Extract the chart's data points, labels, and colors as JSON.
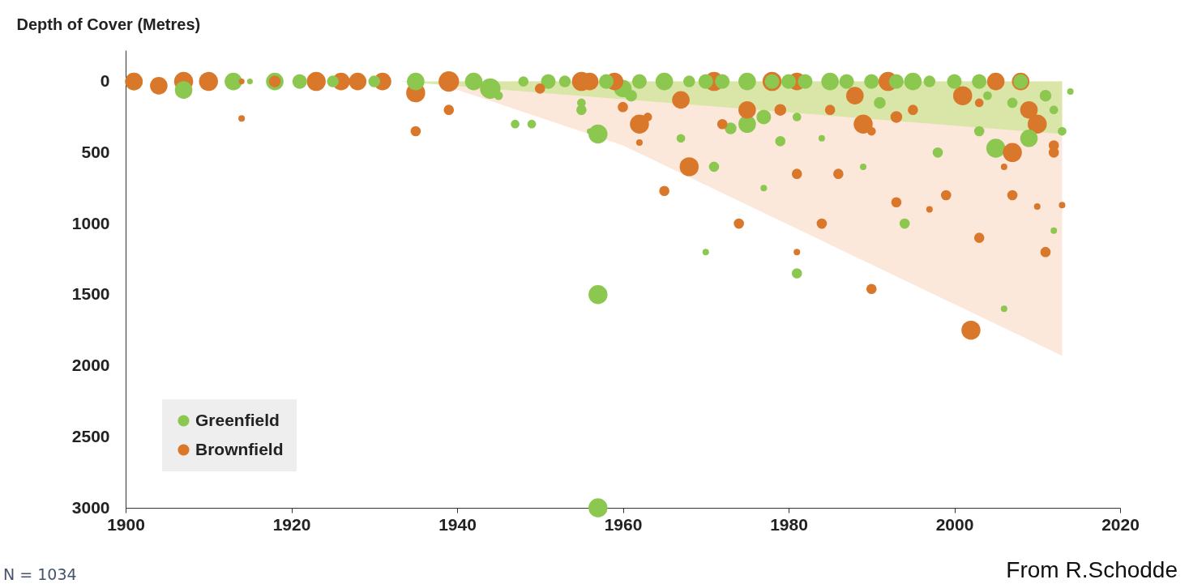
{
  "chart_data": {
    "type": "bubble",
    "ylabel": "Depth of Cover (Metres)",
    "xlim": [
      1900,
      2020
    ],
    "xticks": [
      1900,
      1920,
      1940,
      1960,
      1980,
      2000,
      2020
    ],
    "ylim": [
      3000,
      -220
    ],
    "yticks": [
      0,
      500,
      1000,
      1500,
      2000,
      2500,
      3000
    ],
    "legend": "bottom left",
    "grid": false,
    "annotations": [
      "N = 1034",
      "From R.Schodde"
    ],
    "series": [
      {
        "type": "area",
        "color": "#fbe1d2",
        "x": [
          1937,
          1960,
          2013
        ],
        "values": [
          0,
          450,
          1930
        ]
      },
      {
        "type": "area",
        "color": "#cfe69a",
        "x": [
          1933,
          2013
        ],
        "values": [
          0,
          370
        ]
      },
      {
        "name": "Greenfield",
        "color": "#8cc850",
        "x": [
          1901,
          1907,
          1913,
          1915,
          1918,
          1921,
          1925,
          1930,
          1935,
          1942,
          1944,
          1945,
          1947,
          1948,
          1949,
          1951,
          1953,
          1955,
          1955,
          1956,
          1957,
          1957,
          1957,
          1958,
          1960,
          1961,
          1962,
          1965,
          1967,
          1968,
          1970,
          1970,
          1971,
          1972,
          1973,
          1975,
          1975,
          1977,
          1977,
          1978,
          1979,
          1980,
          1981,
          1981,
          1982,
          1984,
          1985,
          1987,
          1989,
          1990,
          1991,
          1993,
          1994,
          1995,
          1997,
          1998,
          2000,
          2003,
          2003,
          2004,
          2005,
          2006,
          2007,
          2008,
          2009,
          2011,
          2012,
          2012,
          2013,
          2014
        ],
        "values": [
          0,
          60,
          0,
          0,
          0,
          0,
          0,
          0,
          0,
          0,
          50,
          100,
          300,
          0,
          300,
          0,
          0,
          200,
          150,
          350,
          370,
          1500,
          3000,
          0,
          50,
          100,
          0,
          0,
          400,
          0,
          1200,
          0,
          600,
          0,
          330,
          0,
          300,
          750,
          250,
          0,
          420,
          0,
          1350,
          250,
          0,
          400,
          0,
          0,
          600,
          0,
          150,
          0,
          1000,
          0,
          0,
          500,
          0,
          350,
          0,
          100,
          470,
          1600,
          150,
          0,
          400,
          100,
          200,
          1050,
          350,
          70
        ],
        "sizes": [
          0.73,
          0.73,
          0.73,
          0.08,
          0.73,
          0.51,
          0.33,
          0.33,
          0.73,
          0.73,
          1,
          0.18,
          0.18,
          0.25,
          0.18,
          0.51,
          0.33,
          0.25,
          0.18,
          0.08,
          0.86,
          0.86,
          0.86,
          0.51,
          0.73,
          0.33,
          0.51,
          0.73,
          0.18,
          0.33,
          0.1,
          0.51,
          0.25,
          0.51,
          0.33,
          0.73,
          0.73,
          0.1,
          0.51,
          0.51,
          0.25,
          0.51,
          0.25,
          0.18,
          0.51,
          0.1,
          0.73,
          0.51,
          0.1,
          0.51,
          0.33,
          0.51,
          0.25,
          0.73,
          0.33,
          0.25,
          0.51,
          0.25,
          0.51,
          0.18,
          0.86,
          0.1,
          0.25,
          0.51,
          0.73,
          0.33,
          0.18,
          0.1,
          0.18,
          0.1
        ]
      },
      {
        "name": "Brownfield",
        "color": "#d9782b",
        "x": [
          1901,
          1904,
          1907,
          1910,
          1914,
          1914,
          1918,
          1923,
          1926,
          1928,
          1931,
          1935,
          1935,
          1939,
          1939,
          1950,
          1955,
          1956,
          1959,
          1960,
          1962,
          1962,
          1963,
          1965,
          1967,
          1968,
          1971,
          1972,
          1974,
          1975,
          1978,
          1979,
          1981,
          1981,
          1981,
          1984,
          1985,
          1986,
          1988,
          1989,
          1990,
          1990,
          1992,
          1993,
          1993,
          1995,
          1997,
          1999,
          2001,
          2002,
          2003,
          2003,
          2005,
          2006,
          2007,
          2007,
          2008,
          2009,
          2010,
          2010,
          2011,
          2012,
          2012,
          2013
        ],
        "values": [
          0,
          30,
          0,
          0,
          260,
          0,
          0,
          0,
          0,
          0,
          0,
          80,
          350,
          0,
          200,
          50,
          0,
          0,
          0,
          180,
          300,
          430,
          250,
          770,
          130,
          600,
          0,
          300,
          1000,
          200,
          0,
          200,
          650,
          1200,
          0,
          1000,
          200,
          650,
          100,
          300,
          350,
          1460,
          0,
          850,
          250,
          200,
          900,
          800,
          100,
          1750,
          1100,
          150,
          0,
          600,
          500,
          800,
          0,
          200,
          880,
          300,
          1200,
          450,
          500,
          870
        ],
        "sizes": [
          0.73,
          0.73,
          0.86,
          0.86,
          0.1,
          0.08,
          0.33,
          0.86,
          0.73,
          0.73,
          0.73,
          0.86,
          0.25,
          1,
          0.25,
          0.25,
          0.86,
          0.73,
          0.73,
          0.25,
          0.86,
          0.1,
          0.18,
          0.25,
          0.73,
          0.86,
          0.86,
          0.25,
          0.25,
          0.73,
          0.86,
          0.33,
          0.25,
          0.1,
          0.73,
          0.25,
          0.25,
          0.25,
          0.73,
          0.86,
          0.18,
          0.25,
          0.86,
          0.25,
          0.33,
          0.25,
          0.1,
          0.25,
          0.86,
          0.86,
          0.25,
          0.18,
          0.73,
          0.1,
          0.86,
          0.25,
          0.73,
          0.73,
          0.1,
          0.86,
          0.25,
          0.25,
          0.25,
          0.1
        ]
      }
    ]
  }
}
